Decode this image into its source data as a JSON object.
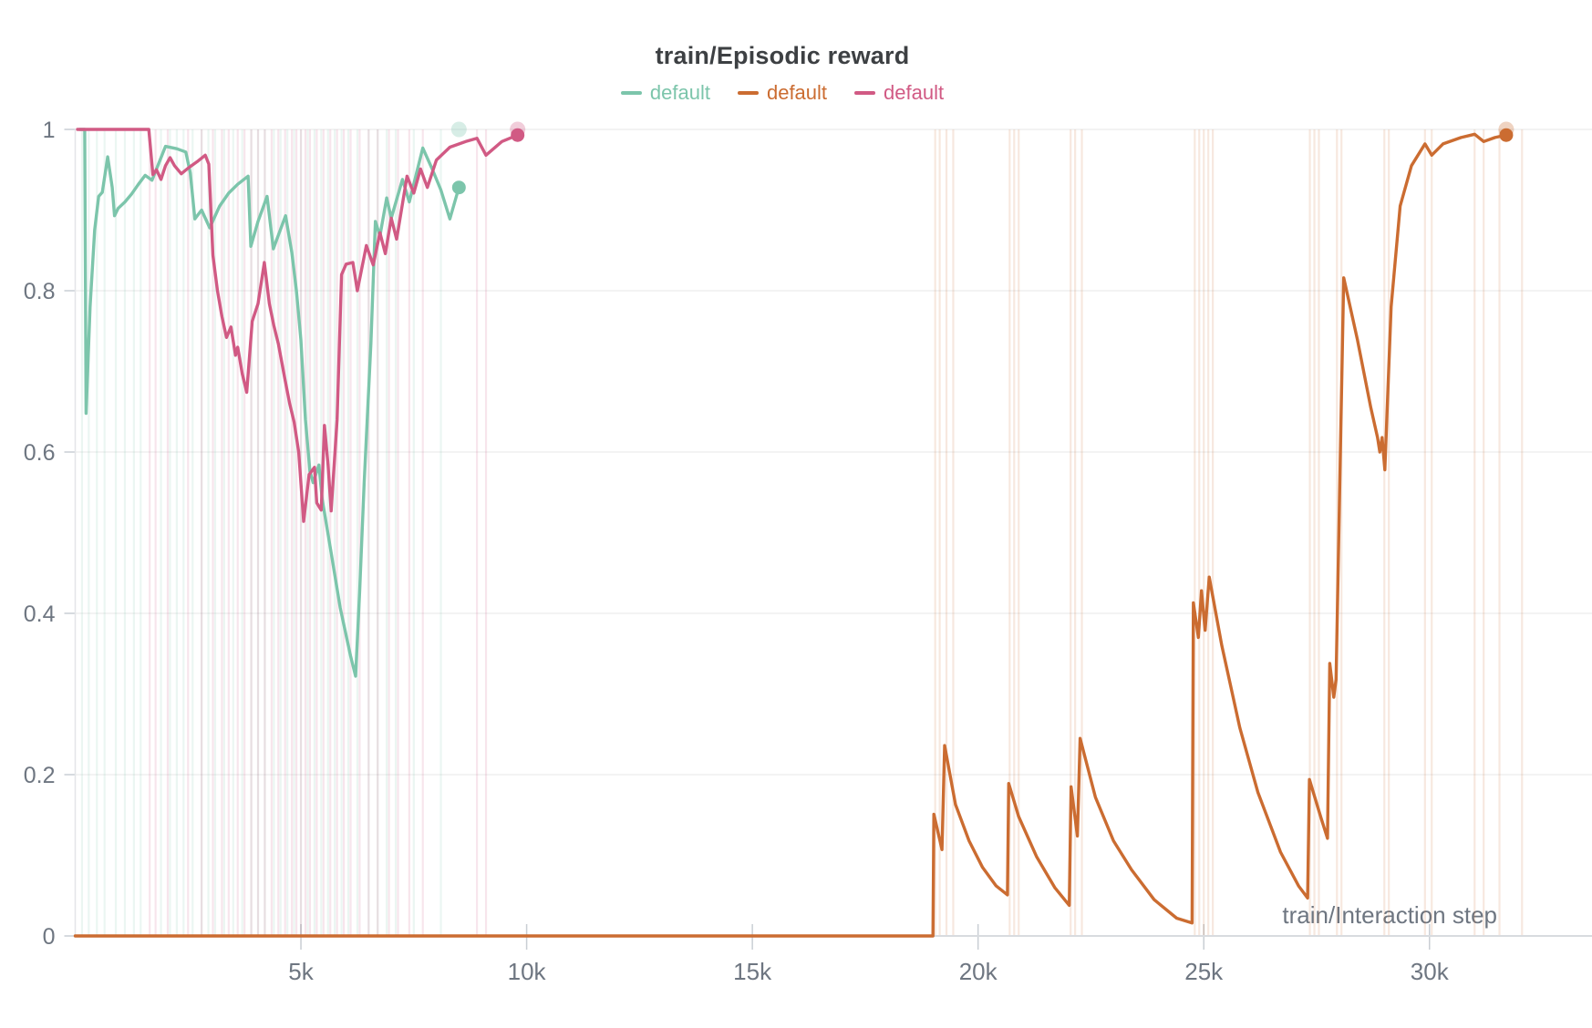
{
  "chart_data": {
    "type": "line",
    "title": "train/Episodic reward",
    "xlabel": "train/Interaction step",
    "ylabel": "",
    "xlim": [
      0,
      33600
    ],
    "ylim": [
      0,
      1
    ],
    "grid": "horizontal-only",
    "legend_position": "top-center",
    "x_ticks": [
      {
        "value": 5000,
        "label": "5k"
      },
      {
        "value": 10000,
        "label": "10k"
      },
      {
        "value": 15000,
        "label": "15k"
      },
      {
        "value": 20000,
        "label": "20k"
      },
      {
        "value": 25000,
        "label": "25k"
      },
      {
        "value": 30000,
        "label": "30k"
      }
    ],
    "y_ticks": [
      {
        "value": 0,
        "label": "0"
      },
      {
        "value": 0.2,
        "label": "0.2"
      },
      {
        "value": 0.4,
        "label": "0.4"
      },
      {
        "value": 0.6,
        "label": "0.6"
      },
      {
        "value": 0.8,
        "label": "0.8"
      },
      {
        "value": 1,
        "label": "1"
      }
    ],
    "colors": {
      "grid": "#ececec",
      "axis": "#d8dbdf",
      "tick": "#c9ced4",
      "tick_text": "#6e7681",
      "title_text": "#3d4043"
    },
    "series": [
      {
        "name": "default",
        "color": "#7cc5ab",
        "points": [
          [
            100,
            1.0
          ],
          [
            210,
            1.0
          ],
          [
            240,
            0.648
          ],
          [
            330,
            0.78
          ],
          [
            430,
            0.875
          ],
          [
            520,
            0.917
          ],
          [
            600,
            0.922
          ],
          [
            720,
            0.966
          ],
          [
            820,
            0.928
          ],
          [
            870,
            0.893
          ],
          [
            950,
            0.902
          ],
          [
            1100,
            0.91
          ],
          [
            1250,
            0.92
          ],
          [
            1400,
            0.932
          ],
          [
            1550,
            0.943
          ],
          [
            1700,
            0.937
          ],
          [
            1850,
            0.958
          ],
          [
            2000,
            0.979
          ],
          [
            2250,
            0.976
          ],
          [
            2450,
            0.972
          ],
          [
            2550,
            0.946
          ],
          [
            2650,
            0.889
          ],
          [
            2800,
            0.9
          ],
          [
            2980,
            0.878
          ],
          [
            3200,
            0.905
          ],
          [
            3400,
            0.921
          ],
          [
            3600,
            0.932
          ],
          [
            3830,
            0.942
          ],
          [
            3890,
            0.855
          ],
          [
            4050,
            0.886
          ],
          [
            4250,
            0.917
          ],
          [
            4390,
            0.852
          ],
          [
            4520,
            0.872
          ],
          [
            4660,
            0.893
          ],
          [
            4800,
            0.847
          ],
          [
            4900,
            0.8
          ],
          [
            5000,
            0.739
          ],
          [
            5100,
            0.64
          ],
          [
            5200,
            0.576
          ],
          [
            5270,
            0.562
          ],
          [
            5400,
            0.584
          ],
          [
            5470,
            0.542
          ],
          [
            5670,
            0.475
          ],
          [
            5870,
            0.407
          ],
          [
            6100,
            0.347
          ],
          [
            6210,
            0.322
          ],
          [
            6300,
            0.426
          ],
          [
            6400,
            0.562
          ],
          [
            6550,
            0.735
          ],
          [
            6650,
            0.886
          ],
          [
            6750,
            0.868
          ],
          [
            6900,
            0.915
          ],
          [
            7000,
            0.89
          ],
          [
            7250,
            0.938
          ],
          [
            7400,
            0.91
          ],
          [
            7700,
            0.977
          ],
          [
            7900,
            0.952
          ],
          [
            8100,
            0.925
          ],
          [
            8300,
            0.889
          ],
          [
            8500,
            0.928
          ]
        ],
        "end_dot": [
          8500,
          0.928
        ],
        "raw_final_dot": [
          8500,
          1.0
        ],
        "raw_event_steps": [
          150,
          300,
          480,
          650,
          900,
          1100,
          1300,
          1450,
          1900,
          2100,
          2250,
          2400,
          2600,
          2800,
          2950,
          3100,
          3300,
          3500,
          3700,
          3900,
          4050,
          4200,
          4400,
          4550,
          4700,
          4850,
          5000,
          5150,
          5300,
          5450,
          5600,
          5750,
          5900,
          6050,
          6250,
          6500,
          6700,
          6900,
          7100,
          7500,
          8100
        ]
      },
      {
        "name": "default",
        "color": "#cb6c31",
        "points": [
          [
            0,
            0
          ],
          [
            19000,
            0
          ],
          [
            19020,
            0.151
          ],
          [
            19200,
            0.107
          ],
          [
            19260,
            0.236
          ],
          [
            19500,
            0.163
          ],
          [
            19800,
            0.118
          ],
          [
            20100,
            0.085
          ],
          [
            20400,
            0.062
          ],
          [
            20650,
            0.051
          ],
          [
            20680,
            0.189
          ],
          [
            20900,
            0.148
          ],
          [
            21300,
            0.098
          ],
          [
            21700,
            0.06
          ],
          [
            22020,
            0.038
          ],
          [
            22060,
            0.185
          ],
          [
            22200,
            0.124
          ],
          [
            22260,
            0.245
          ],
          [
            22600,
            0.172
          ],
          [
            23000,
            0.118
          ],
          [
            23400,
            0.082
          ],
          [
            23900,
            0.045
          ],
          [
            24400,
            0.022
          ],
          [
            24740,
            0.016
          ],
          [
            24770,
            0.413
          ],
          [
            24880,
            0.37
          ],
          [
            24950,
            0.428
          ],
          [
            25030,
            0.379
          ],
          [
            25120,
            0.445
          ],
          [
            25400,
            0.36
          ],
          [
            25800,
            0.258
          ],
          [
            26200,
            0.178
          ],
          [
            26700,
            0.104
          ],
          [
            27100,
            0.062
          ],
          [
            27300,
            0.047
          ],
          [
            27340,
            0.194
          ],
          [
            27600,
            0.146
          ],
          [
            27740,
            0.121
          ],
          [
            27790,
            0.338
          ],
          [
            27880,
            0.296
          ],
          [
            27930,
            0.318
          ],
          [
            28100,
            0.816
          ],
          [
            28400,
            0.74
          ],
          [
            28700,
            0.655
          ],
          [
            28850,
            0.618
          ],
          [
            28900,
            0.6
          ],
          [
            28950,
            0.618
          ],
          [
            29010,
            0.578
          ],
          [
            29150,
            0.78
          ],
          [
            29350,
            0.905
          ],
          [
            29600,
            0.955
          ],
          [
            29900,
            0.982
          ],
          [
            30050,
            0.968
          ],
          [
            30300,
            0.982
          ],
          [
            30700,
            0.99
          ],
          [
            31000,
            0.994
          ],
          [
            31200,
            0.985
          ],
          [
            31450,
            0.99
          ],
          [
            31700,
            0.993
          ]
        ],
        "end_dot": [
          31700,
          0.993
        ],
        "raw_final_dot": [
          31700,
          1.0
        ],
        "raw_event_steps": [
          19050,
          19150,
          19300,
          19450,
          20700,
          20800,
          20900,
          22050,
          22150,
          22300,
          24800,
          24900,
          25000,
          25100,
          25200,
          27350,
          27450,
          27550,
          27950,
          28050,
          29000,
          29100,
          29900,
          30050,
          31000,
          31200,
          31550,
          32050
        ]
      },
      {
        "name": "default",
        "color": "#d15a84",
        "points": [
          [
            50,
            1.0
          ],
          [
            1630,
            1.0
          ],
          [
            1720,
            0.944
          ],
          [
            1800,
            0.95
          ],
          [
            1900,
            0.938
          ],
          [
            2000,
            0.955
          ],
          [
            2100,
            0.965
          ],
          [
            2200,
            0.955
          ],
          [
            2350,
            0.945
          ],
          [
            2500,
            0.952
          ],
          [
            2700,
            0.96
          ],
          [
            2880,
            0.968
          ],
          [
            2960,
            0.957
          ],
          [
            3050,
            0.844
          ],
          [
            3150,
            0.8
          ],
          [
            3250,
            0.768
          ],
          [
            3350,
            0.742
          ],
          [
            3450,
            0.755
          ],
          [
            3550,
            0.72
          ],
          [
            3600,
            0.73
          ],
          [
            3700,
            0.697
          ],
          [
            3800,
            0.674
          ],
          [
            3920,
            0.762
          ],
          [
            4050,
            0.784
          ],
          [
            4190,
            0.835
          ],
          [
            4300,
            0.784
          ],
          [
            4400,
            0.757
          ],
          [
            4500,
            0.734
          ],
          [
            4650,
            0.689
          ],
          [
            4750,
            0.66
          ],
          [
            4850,
            0.637
          ],
          [
            4950,
            0.6
          ],
          [
            5060,
            0.514
          ],
          [
            5180,
            0.572
          ],
          [
            5300,
            0.581
          ],
          [
            5350,
            0.537
          ],
          [
            5450,
            0.528
          ],
          [
            5520,
            0.633
          ],
          [
            5600,
            0.584
          ],
          [
            5670,
            0.527
          ],
          [
            5800,
            0.64
          ],
          [
            5900,
            0.82
          ],
          [
            6000,
            0.833
          ],
          [
            6150,
            0.835
          ],
          [
            6250,
            0.8
          ],
          [
            6450,
            0.856
          ],
          [
            6600,
            0.832
          ],
          [
            6750,
            0.872
          ],
          [
            6870,
            0.846
          ],
          [
            7000,
            0.89
          ],
          [
            7120,
            0.864
          ],
          [
            7350,
            0.942
          ],
          [
            7500,
            0.921
          ],
          [
            7650,
            0.951
          ],
          [
            7800,
            0.928
          ],
          [
            8000,
            0.962
          ],
          [
            8300,
            0.978
          ],
          [
            8650,
            0.985
          ],
          [
            8900,
            0.989
          ],
          [
            9100,
            0.968
          ],
          [
            9450,
            0.985
          ],
          [
            9800,
            0.993
          ]
        ],
        "end_dot": [
          9800,
          0.993
        ],
        "raw_final_dot": [
          9800,
          1.0
        ],
        "raw_event_steps": [
          1650,
          1780,
          2050,
          2500,
          2800,
          3050,
          3250,
          3400,
          3600,
          3750,
          3900,
          4050,
          4200,
          4350,
          4500,
          4650,
          4800,
          4900,
          5000,
          5100,
          5200,
          5350,
          5500,
          5650,
          5800,
          5950,
          6100,
          6300,
          6500,
          6700,
          6950,
          7150,
          7400,
          7700,
          8900,
          9100
        ]
      }
    ]
  }
}
